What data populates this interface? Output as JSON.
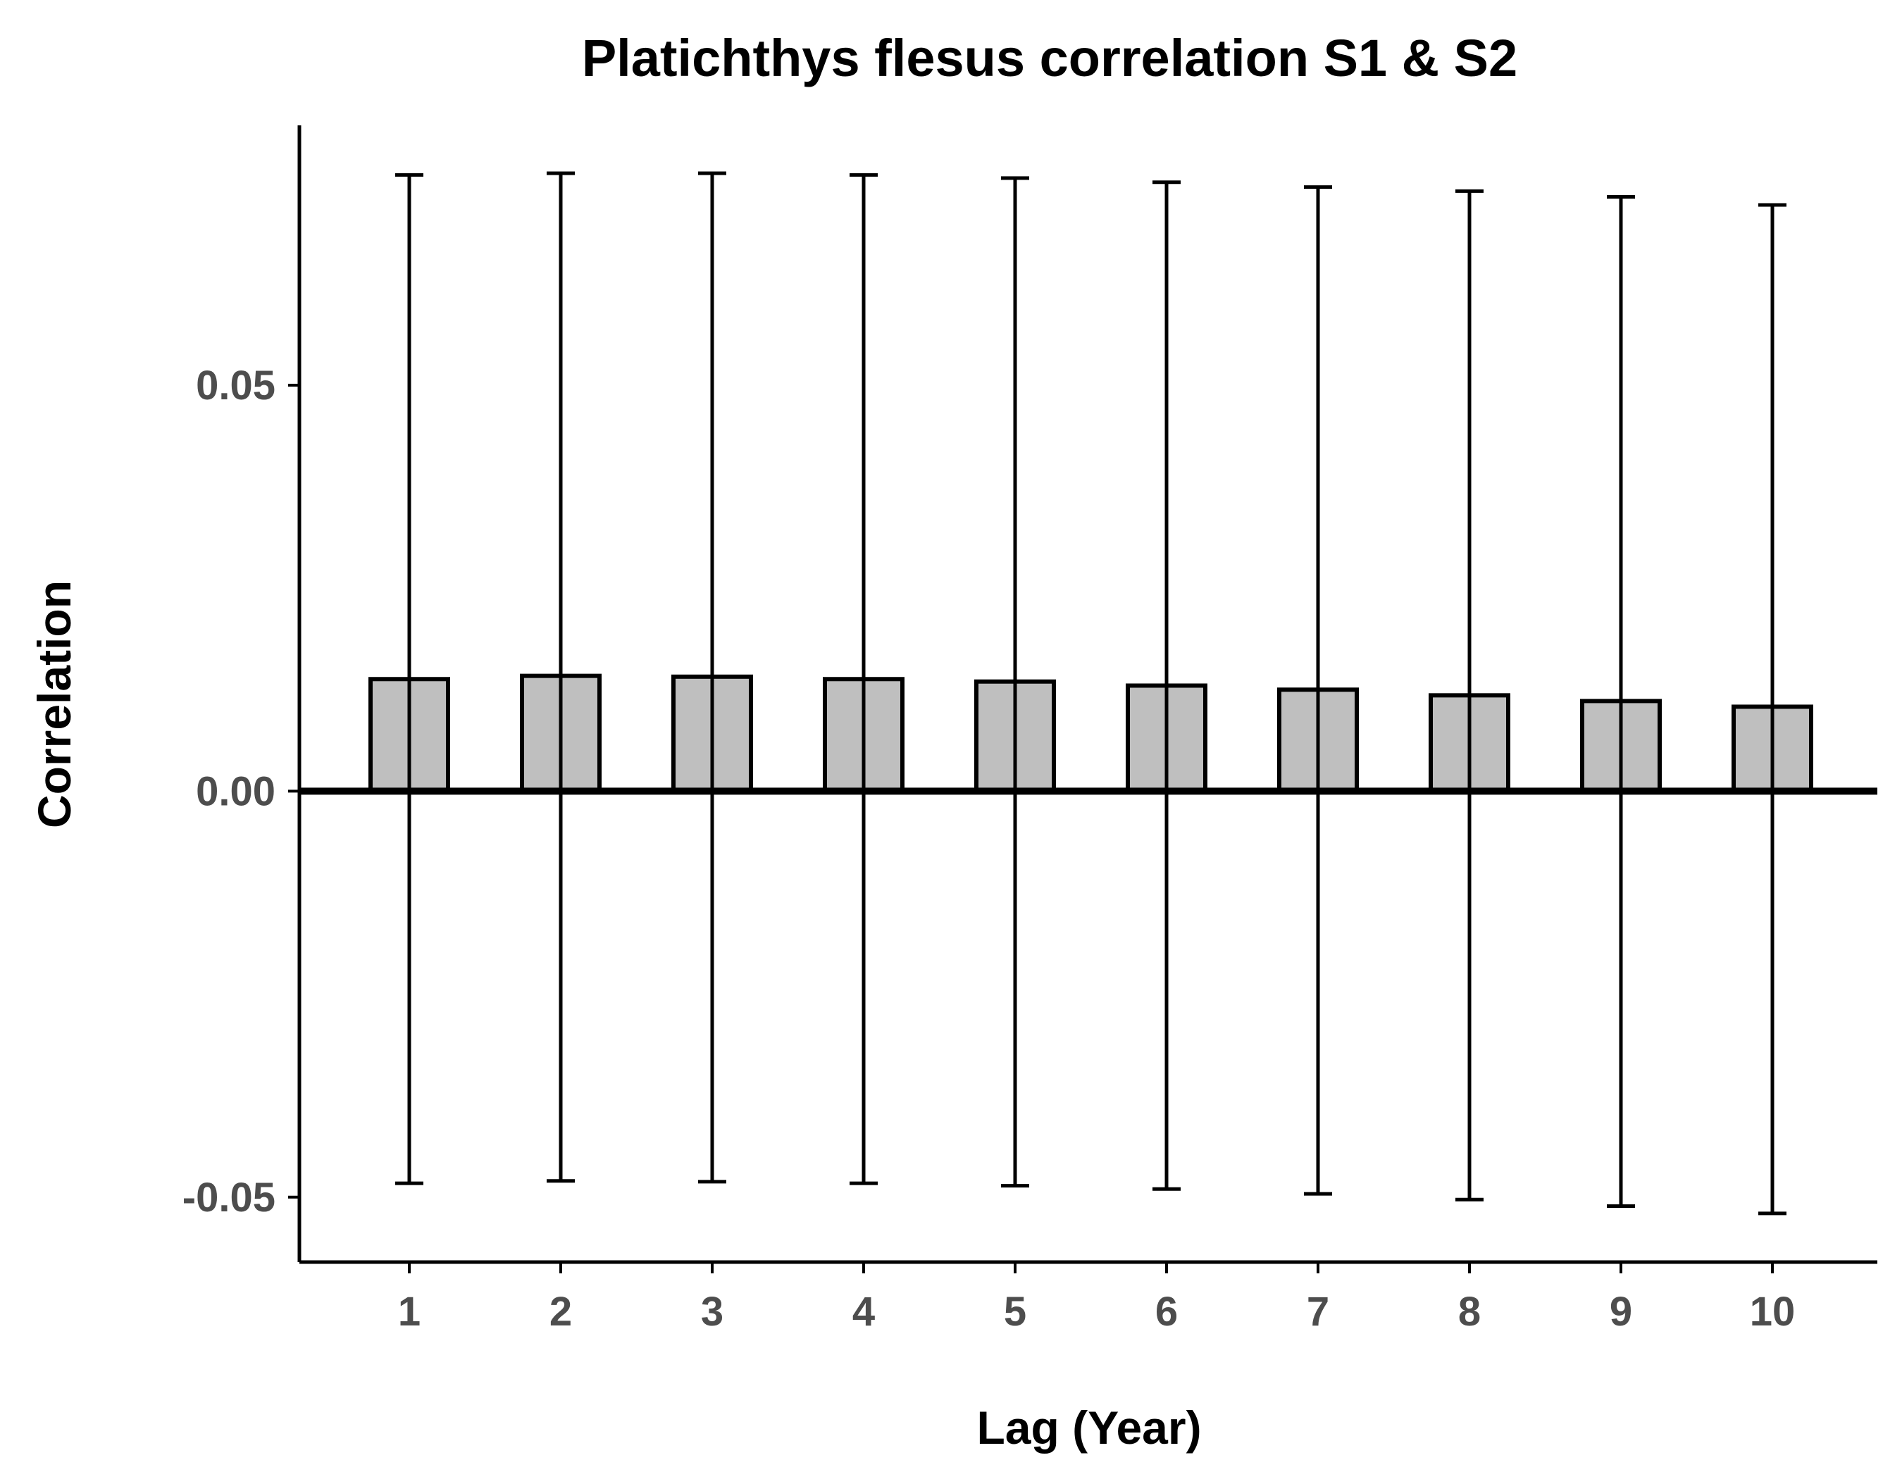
{
  "chart_data": {
    "type": "bar",
    "title": "Platichthys flesus correlation S1 & S2",
    "xlabel": "Lag (Year)",
    "ylabel": "Correlation",
    "categories": [
      "1",
      "2",
      "3",
      "4",
      "5",
      "6",
      "7",
      "8",
      "9",
      "10"
    ],
    "values": [
      0.0138,
      0.0142,
      0.0141,
      0.0138,
      0.0135,
      0.013,
      0.0125,
      0.0118,
      0.0111,
      0.0104
    ],
    "error_upper": [
      0.0759,
      0.0761,
      0.0761,
      0.0759,
      0.0755,
      0.075,
      0.0744,
      0.0739,
      0.0732,
      0.0722
    ],
    "error_lower": [
      -0.0483,
      -0.048,
      -0.0481,
      -0.0483,
      -0.0486,
      -0.049,
      -0.0496,
      -0.0503,
      -0.0511,
      -0.052
    ],
    "ylim": [
      -0.058,
      0.082
    ],
    "yticks": [
      -0.05,
      0.0,
      0.05
    ],
    "ytick_labels": [
      "-0.05",
      "0.00",
      "0.05"
    ],
    "grid": false,
    "legend": "none",
    "colors": {
      "bar_fill": "#bfbfbf",
      "bar_stroke": "#000000",
      "tick_label": "#4d4d4d"
    }
  }
}
